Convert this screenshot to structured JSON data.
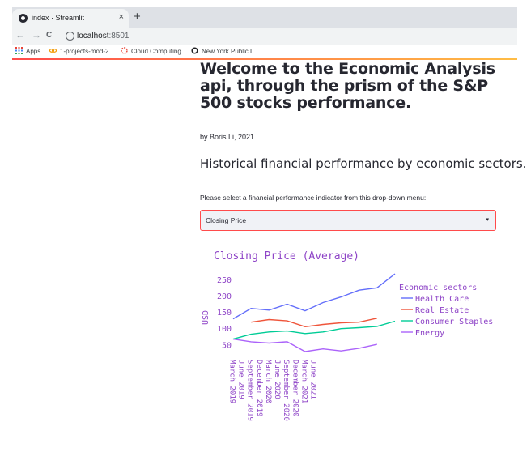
{
  "browser": {
    "tab_title": "index · Streamlit",
    "tab_close": "×",
    "new_tab": "+",
    "url_host": "localhost",
    "url_port": ":8501",
    "back": "←",
    "forward": "→",
    "reload": "C",
    "bookmarks": [
      {
        "label": "Apps",
        "icon": "apps-grid-icon",
        "color": "#ea4335"
      },
      {
        "label": "1-projects-mod-2...",
        "icon": "link-icon",
        "color": "#f29900"
      },
      {
        "label": "Cloud Computing...",
        "icon": "cloud-icon",
        "color": "#ea4335"
      },
      {
        "label": "New York Public L...",
        "icon": "nypl-icon",
        "color": "#202124"
      }
    ]
  },
  "page": {
    "title": "Welcome to the Economic Analysis api, through the prism of the S&P 500 stocks performance.",
    "byline": "by Boris Li, 2021",
    "subheader": "Historical financial performance by economic sectors.",
    "select_prompt": "Please select a financial performance indicator from this drop-down menu:",
    "select_value": "Closing Price",
    "select_caret": "▾"
  },
  "chart_data": {
    "type": "line",
    "title": "Closing Price (Average)",
    "ylabel": "USD",
    "xlabel": "",
    "x": [
      "March 2019",
      "June 2019",
      "September 2019",
      "December 2019",
      "March 2020",
      "June 2020",
      "September 2020",
      "December 2020",
      "March 2021",
      "June 2021"
    ],
    "x_ticks": [
      "March 2019",
      "June 2019",
      "September 2019",
      "December 2019",
      "March 2020",
      "June 2020",
      "September 2020",
      "December 2020",
      "March 2021",
      "June 2021"
    ],
    "y_ticks": [
      50,
      100,
      150,
      200,
      250
    ],
    "ylim": [
      20,
      268
    ],
    "legend_title": "Economic sectors",
    "legend_position": "right",
    "grid": false,
    "series": [
      {
        "name": "Health Care",
        "color": "#636efa",
        "points": [
          [
            0,
            130
          ],
          [
            0.5,
            162
          ],
          [
            1,
            157
          ],
          [
            1.5,
            175
          ],
          [
            2,
            155
          ],
          [
            2.5,
            180
          ],
          [
            3,
            197
          ],
          [
            3.5,
            218
          ],
          [
            4,
            225
          ],
          [
            4.5,
            268
          ]
        ]
      },
      {
        "name": "Real Estate",
        "color": "#ef553b",
        "points": [
          [
            0.5,
            120
          ],
          [
            1,
            128
          ],
          [
            1.5,
            124
          ],
          [
            2,
            106
          ],
          [
            2.5,
            113
          ],
          [
            3,
            118
          ],
          [
            3.5,
            120
          ],
          [
            4,
            132
          ]
        ]
      },
      {
        "name": "Consumer Staples",
        "color": "#00cc96",
        "points": [
          [
            0,
            68
          ],
          [
            0.5,
            83
          ],
          [
            1,
            90
          ],
          [
            1.5,
            93
          ],
          [
            2,
            85
          ],
          [
            2.5,
            90
          ],
          [
            3,
            100
          ],
          [
            3.5,
            103
          ],
          [
            4,
            107
          ],
          [
            4.5,
            123
          ]
        ]
      },
      {
        "name": "Energy",
        "color": "#ab63fa",
        "points": [
          [
            0,
            68
          ],
          [
            0.5,
            60
          ],
          [
            1,
            56
          ],
          [
            1.5,
            60
          ],
          [
            2,
            30
          ],
          [
            2.5,
            38
          ],
          [
            3,
            32
          ],
          [
            3.5,
            40
          ],
          [
            4,
            52
          ]
        ]
      }
    ]
  }
}
